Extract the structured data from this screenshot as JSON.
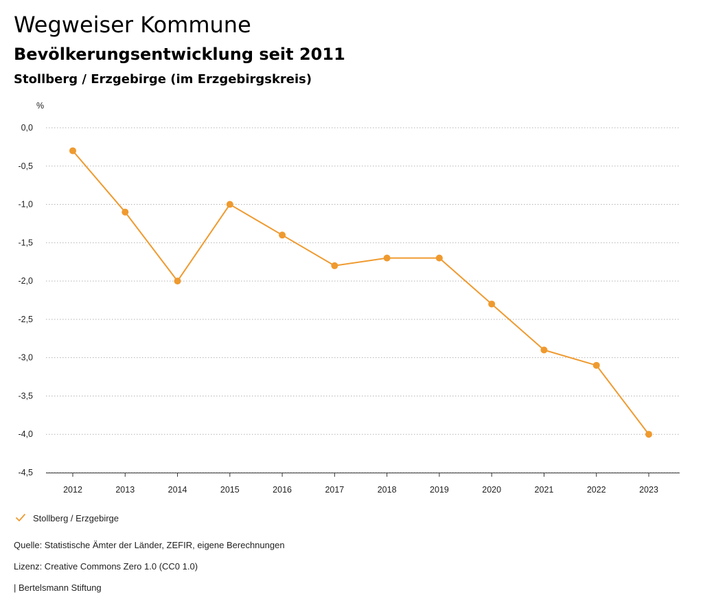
{
  "header": {
    "title": "Wegweiser Kommune",
    "subtitle": "Bevölkerungsentwicklung seit 2011",
    "region": "Stollberg / Erzgebirge (im Erzgebirgskreis)"
  },
  "chart_data": {
    "type": "line",
    "title": "Bevölkerungsentwicklung seit 2011",
    "ylabel": "%",
    "xlabel": "",
    "x": [
      "2012",
      "2013",
      "2014",
      "2015",
      "2016",
      "2017",
      "2018",
      "2019",
      "2020",
      "2021",
      "2022",
      "2023"
    ],
    "ylim": [
      -4.5,
      0.0
    ],
    "yticks": [
      0.0,
      -0.5,
      -1.0,
      -1.5,
      -2.0,
      -2.5,
      -3.0,
      -3.5,
      -4.0,
      -4.5
    ],
    "ytick_labels": [
      "0,0",
      "-0,5",
      "-1,0",
      "-1,5",
      "-2,0",
      "-2,5",
      "-3,0",
      "-3,5",
      "-4,0",
      "-4,5"
    ],
    "grid": true,
    "legend_position": "bottom-left",
    "series": [
      {
        "name": "Stollberg / Erzgebirge",
        "color": "#ef9a2f",
        "values": [
          -0.3,
          -1.1,
          -2.0,
          -1.0,
          -1.4,
          -1.8,
          -1.7,
          -1.7,
          -2.3,
          -2.9,
          -3.1,
          -4.0
        ]
      }
    ]
  },
  "legend": {
    "label": "Stollberg / Erzgebirge",
    "icon": "checkmark-icon"
  },
  "footer": {
    "source": "Quelle: Statistische Ämter der Länder, ZEFIR, eigene Berechnungen",
    "license": "Lizenz: Creative Commons Zero 1.0 (CC0 1.0)",
    "publisher": "| Bertelsmann Stiftung"
  }
}
